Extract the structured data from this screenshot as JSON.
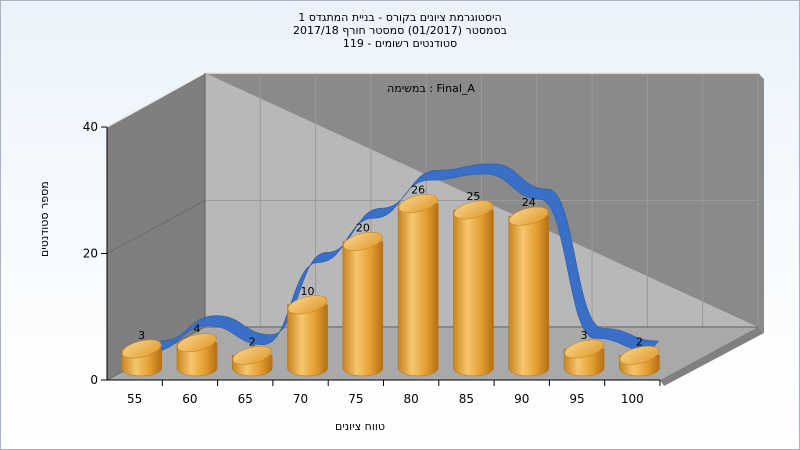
{
  "title_lines": [
    "היסטוגרמת ציונים בקורס - בניית המתגדס 1",
    "בסמסטר  (01/2017)  סמסטר חורף 2017/18",
    "סטודנטים רשומים - 119"
  ],
  "chart_data": {
    "type": "bar",
    "annotation": "במשימה : Final_A",
    "xlabel": "טווח ציונים",
    "ylabel": "מספר סטודנטים",
    "categories": [
      "55",
      "60",
      "65",
      "70",
      "75",
      "80",
      "85",
      "90",
      "95",
      "100"
    ],
    "values": [
      3,
      4,
      2,
      10,
      20,
      26,
      25,
      24,
      3,
      2
    ],
    "line_values": [
      3,
      7,
      4,
      17,
      24,
      30,
      31,
      27,
      5,
      3
    ],
    "yticks": [
      0,
      20,
      40
    ],
    "ylim": [
      0,
      40
    ],
    "grid": true,
    "colors": {
      "bar": "#e8a63a",
      "ribbon": "#3a6fc8",
      "back_wall": "#b8b8b8",
      "side_wall": "#7f7f7f",
      "floor": "#a9a9a9"
    }
  }
}
